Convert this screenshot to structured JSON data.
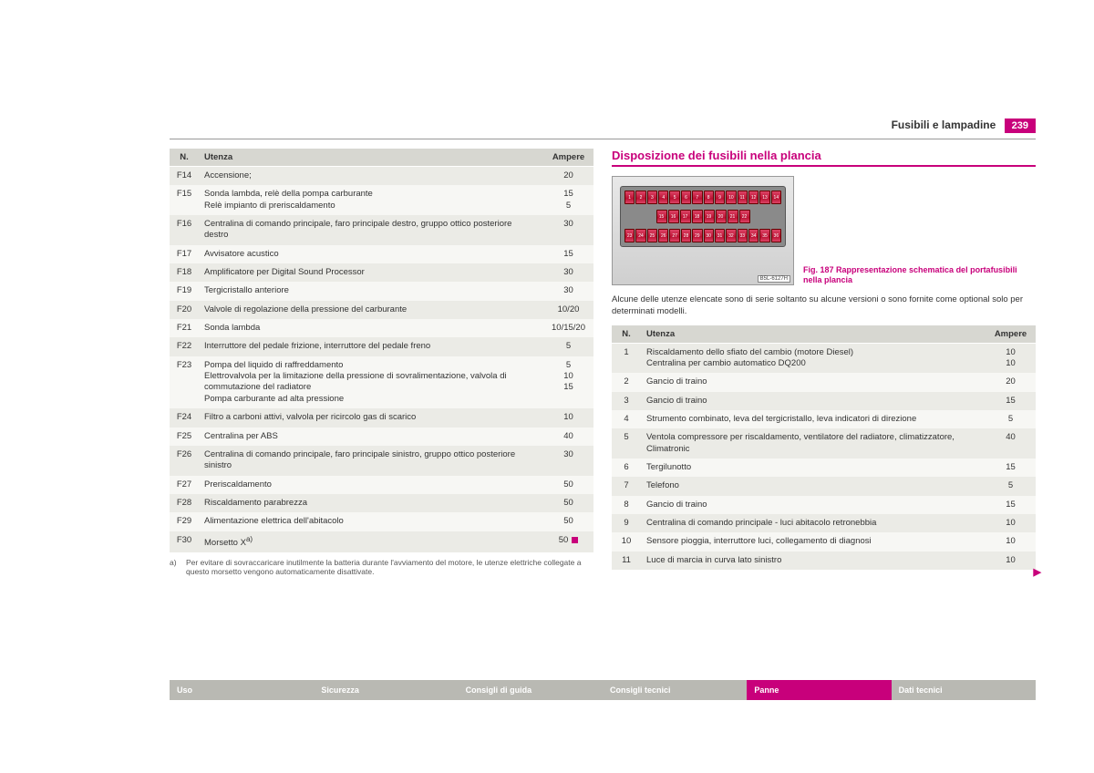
{
  "header": {
    "section": "Fusibili e lampadine",
    "page": "239"
  },
  "colors": {
    "accent": "#c8007b",
    "row_odd": "#ebebe6",
    "row_even": "#f7f7f4",
    "header_bg": "#d7d7d1"
  },
  "left_table": {
    "columns": {
      "n": "N.",
      "utenza": "Utenza",
      "ampere": "Ampere"
    },
    "rows": [
      {
        "n": "F14",
        "utenza": "Accensione;",
        "ampere": "20"
      },
      {
        "n": "F15",
        "utenza": "Sonda lambda, relè della pompa carburante\nRelè impianto di preriscaldamento",
        "ampere": "15\n5"
      },
      {
        "n": "F16",
        "utenza": "Centralina di comando principale, faro principale destro, gruppo ottico posteriore destro",
        "ampere": "30"
      },
      {
        "n": "F17",
        "utenza": "Avvisatore acustico",
        "ampere": "15"
      },
      {
        "n": "F18",
        "utenza": "Amplificatore per Digital Sound Processor",
        "ampere": "30"
      },
      {
        "n": "F19",
        "utenza": "Tergicristallo anteriore",
        "ampere": "30"
      },
      {
        "n": "F20",
        "utenza": "Valvole di regolazione della pressione del carburante",
        "ampere": "10/20"
      },
      {
        "n": "F21",
        "utenza": "Sonda lambda",
        "ampere": "10/15/20"
      },
      {
        "n": "F22",
        "utenza": "Interruttore del pedale frizione, interruttore del pedale freno",
        "ampere": "5"
      },
      {
        "n": "F23",
        "utenza": "Pompa del liquido di raffreddamento\nElettrovalvola per la limitazione della pressione di sovralimentazione, valvola di commutazione del radiatore\nPompa carburante ad alta pressione",
        "ampere": "5\n10\n15"
      },
      {
        "n": "F24",
        "utenza": "Filtro a carboni attivi, valvola per ricircolo gas di scarico",
        "ampere": "10"
      },
      {
        "n": "F25",
        "utenza": "Centralina per ABS",
        "ampere": "40"
      },
      {
        "n": "F26",
        "utenza": "Centralina di comando principale, faro principale sinistro, gruppo ottico posteriore sinistro",
        "ampere": "30"
      },
      {
        "n": "F27",
        "utenza": "Preriscaldamento",
        "ampere": "50"
      },
      {
        "n": "F28",
        "utenza": "Riscaldamento parabrezza",
        "ampere": "50"
      },
      {
        "n": "F29",
        "utenza": "Alimentazione elettrica dell'abitacolo",
        "ampere": "50"
      },
      {
        "n": "F30",
        "utenza": "Morsetto X",
        "ampere": "50",
        "sup": "a)"
      }
    ]
  },
  "footnote": {
    "mark": "a)",
    "text": "Per evitare di sovraccaricare inutilmente la batteria durante l'avviamento del motore, le utenze elettriche collegate a questo morsetto vengono automaticamente disattivate."
  },
  "right": {
    "title": "Disposizione dei fusibili nella plancia",
    "fig_caption": "Fig. 187   Rappresentazione schematica del portafusibili nella plancia",
    "fusebox_code": "B5L-6127H",
    "intro": "Alcune delle utenze elencate sono di serie soltanto su alcune versioni o sono fornite come optional solo per determinati modelli.",
    "fusebox_rows": {
      "top": [
        "1",
        "2",
        "3",
        "4",
        "5",
        "6",
        "7",
        "8",
        "9",
        "10",
        "11",
        "12",
        "13",
        "14"
      ],
      "mid": [
        "15",
        "16",
        "17",
        "18",
        "19",
        "20",
        "21",
        "22"
      ],
      "bottom": [
        "23",
        "24",
        "25",
        "26",
        "27",
        "28",
        "29",
        "30",
        "31",
        "32",
        "33",
        "34",
        "35",
        "36"
      ]
    },
    "table": {
      "columns": {
        "n": "N.",
        "utenza": "Utenza",
        "ampere": "Ampere"
      },
      "rows": [
        {
          "n": "1",
          "utenza": "Riscaldamento dello sfiato del cambio (motore Diesel)\nCentralina per cambio automatico DQ200",
          "ampere": "10\n10"
        },
        {
          "n": "2",
          "utenza": "Gancio di traino",
          "ampere": "20"
        },
        {
          "n": "3",
          "utenza": "Gancio di traino",
          "ampere": "15"
        },
        {
          "n": "4",
          "utenza": "Strumento combinato, leva del tergicristallo, leva indicatori di direzione",
          "ampere": "5"
        },
        {
          "n": "5",
          "utenza": "Ventola compressore per riscaldamento, ventilatore del radiatore, climatizzatore, Climatronic",
          "ampere": "40"
        },
        {
          "n": "6",
          "utenza": "Tergilunotto",
          "ampere": "15"
        },
        {
          "n": "7",
          "utenza": "Telefono",
          "ampere": "5"
        },
        {
          "n": "8",
          "utenza": "Gancio di traino",
          "ampere": "15"
        },
        {
          "n": "9",
          "utenza": "Centralina di comando principale - luci abitacolo retronebbia",
          "ampere": "10"
        },
        {
          "n": "10",
          "utenza": "Sensore pioggia, interruttore luci, collegamento di diagnosi",
          "ampere": "10"
        },
        {
          "n": "11",
          "utenza": "Luce di marcia in curva lato sinistro",
          "ampere": "10"
        }
      ]
    }
  },
  "tabs": [
    {
      "label": "Uso",
      "active": false
    },
    {
      "label": "Sicurezza",
      "active": false
    },
    {
      "label": "Consigli di guida",
      "active": false
    },
    {
      "label": "Consigli tecnici",
      "active": false
    },
    {
      "label": "Panne",
      "active": true
    },
    {
      "label": "Dati tecnici",
      "active": false
    }
  ]
}
